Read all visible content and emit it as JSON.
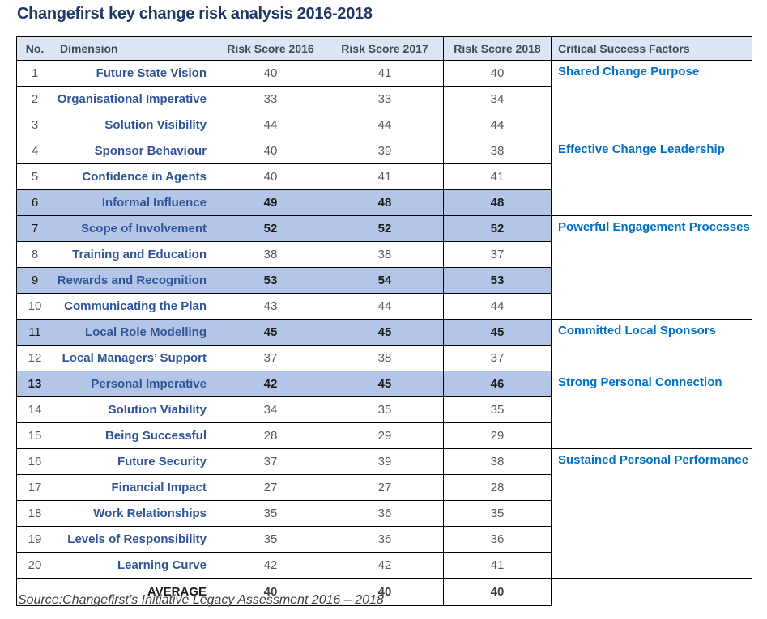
{
  "title": "Changefirst key change risk analysis 2016-2018",
  "source_note": "Source:Changefirst’s Initiative Legacy Assessment 2016 – 2018",
  "colors": {
    "title_text": "#1F3864",
    "header_bg": "#DCE6F2",
    "header_text": "#3D4A5C",
    "dimension_text": "#2F5496",
    "success_factor_text": "#0070C0",
    "value_text": "#595959",
    "highlight_row_bg": "#B4C6E7",
    "highlight_value_text": "#1a1a1a",
    "border": "#000000",
    "source_text": "#404040"
  },
  "table": {
    "headers": [
      "No.",
      "Dimension",
      "Risk Score 2016",
      "Risk Score 2017",
      "Risk Score 2018",
      "Critical Success Factors"
    ],
    "rows": [
      {
        "no": "1",
        "dimension": "Future State Vision",
        "scores": [
          "40",
          "41",
          "40"
        ],
        "highlighted": false,
        "no_bold": false
      },
      {
        "no": "2",
        "dimension": "Organisational Imperative",
        "scores": [
          "33",
          "33",
          "34"
        ],
        "highlighted": false,
        "no_bold": false
      },
      {
        "no": "3",
        "dimension": "Solution Visibility",
        "scores": [
          "44",
          "44",
          "44"
        ],
        "highlighted": false,
        "no_bold": false
      },
      {
        "no": "4",
        "dimension": "Sponsor Behaviour",
        "scores": [
          "40",
          "39",
          "38"
        ],
        "highlighted": false,
        "no_bold": false
      },
      {
        "no": "5",
        "dimension": "Confidence in Agents",
        "scores": [
          "40",
          "41",
          "41"
        ],
        "highlighted": false,
        "no_bold": false
      },
      {
        "no": "6",
        "dimension": "Informal Influence",
        "scores": [
          "49",
          "48",
          "48"
        ],
        "highlighted": true,
        "no_bold": false
      },
      {
        "no": "7",
        "dimension": "Scope of Involvement",
        "scores": [
          "52",
          "52",
          "52"
        ],
        "highlighted": true,
        "no_bold": false
      },
      {
        "no": "8",
        "dimension": "Training and Education",
        "scores": [
          "38",
          "38",
          "37"
        ],
        "highlighted": false,
        "no_bold": false
      },
      {
        "no": "9",
        "dimension": "Rewards and Recognition",
        "scores": [
          "53",
          "54",
          "53"
        ],
        "highlighted": true,
        "no_bold": false
      },
      {
        "no": "10",
        "dimension": "Communicating the Plan",
        "scores": [
          "43",
          "44",
          "44"
        ],
        "highlighted": false,
        "no_bold": false
      },
      {
        "no": "11",
        "dimension": "Local Role Modelling",
        "scores": [
          "45",
          "45",
          "45"
        ],
        "highlighted": true,
        "no_bold": false
      },
      {
        "no": "12",
        "dimension": "Local Managers’ Support",
        "scores": [
          "37",
          "38",
          "37"
        ],
        "highlighted": false,
        "no_bold": false
      },
      {
        "no": "13",
        "dimension": "Personal Imperative",
        "scores": [
          "42",
          "45",
          "46"
        ],
        "highlighted": true,
        "no_bold": true
      },
      {
        "no": "14",
        "dimension": "Solution Viability",
        "scores": [
          "34",
          "35",
          "35"
        ],
        "highlighted": false,
        "no_bold": false
      },
      {
        "no": "15",
        "dimension": "Being Successful",
        "scores": [
          "28",
          "29",
          "29"
        ],
        "highlighted": false,
        "no_bold": false
      },
      {
        "no": "16",
        "dimension": "Future Security",
        "scores": [
          "37",
          "39",
          "38"
        ],
        "highlighted": false,
        "no_bold": false
      },
      {
        "no": "17",
        "dimension": "Financial Impact",
        "scores": [
          "27",
          "27",
          "28"
        ],
        "highlighted": false,
        "no_bold": false
      },
      {
        "no": "18",
        "dimension": "Work Relationships",
        "scores": [
          "35",
          "36",
          "35"
        ],
        "highlighted": false,
        "no_bold": false
      },
      {
        "no": "19",
        "dimension": "Levels of Responsibility",
        "scores": [
          "35",
          "36",
          "36"
        ],
        "highlighted": false,
        "no_bold": false
      },
      {
        "no": "20",
        "dimension": "Learning Curve",
        "scores": [
          "42",
          "42",
          "41"
        ],
        "highlighted": false,
        "no_bold": false
      }
    ],
    "success_factor_groups": [
      {
        "label": "Shared Change Purpose",
        "start_no": 1,
        "span": 3
      },
      {
        "label": "Effective Change Leadership",
        "start_no": 4,
        "span": 3
      },
      {
        "label": "Powerful Engagement Processes",
        "start_no": 7,
        "span": 4
      },
      {
        "label": "Committed Local Sponsors",
        "start_no": 11,
        "span": 2
      },
      {
        "label": "Strong Personal Connection",
        "start_no": 13,
        "span": 3
      },
      {
        "label": "Sustained Personal Performance",
        "start_no": 16,
        "span": 5
      }
    ],
    "average": {
      "label": "AVERAGE",
      "scores": [
        "40",
        "40",
        "40"
      ]
    }
  },
  "chart_data": {
    "type": "table",
    "title": "Changefirst key change risk analysis 2016-2018",
    "columns": [
      "No.",
      "Dimension",
      "Risk Score 2016",
      "Risk Score 2017",
      "Risk Score 2018",
      "Critical Success Factors"
    ],
    "series": [
      {
        "name": "Risk Score 2016",
        "values": [
          40,
          33,
          44,
          40,
          40,
          49,
          52,
          38,
          53,
          43,
          45,
          37,
          42,
          34,
          28,
          37,
          27,
          35,
          35,
          42
        ],
        "average": 40
      },
      {
        "name": "Risk Score 2017",
        "values": [
          41,
          33,
          44,
          39,
          41,
          48,
          52,
          38,
          54,
          44,
          45,
          38,
          45,
          35,
          29,
          39,
          27,
          36,
          36,
          42
        ],
        "average": 40
      },
      {
        "name": "Risk Score 2018",
        "values": [
          40,
          34,
          44,
          38,
          41,
          48,
          52,
          37,
          53,
          44,
          45,
          37,
          46,
          35,
          29,
          38,
          28,
          35,
          36,
          41
        ],
        "average": 40
      }
    ],
    "categories": [
      "Future State Vision",
      "Organisational Imperative",
      "Solution Visibility",
      "Sponsor Behaviour",
      "Confidence in Agents",
      "Informal Influence",
      "Scope of Involvement",
      "Training and Education",
      "Rewards and Recognition",
      "Communicating the Plan",
      "Local Role Modelling",
      "Local Managers’ Support",
      "Personal Imperative",
      "Solution Viability",
      "Being Successful",
      "Future Security",
      "Financial Impact",
      "Work Relationships",
      "Levels of Responsibility",
      "Learning Curve"
    ],
    "highlighted_rows": [
      6,
      7,
      9,
      11,
      13
    ]
  }
}
